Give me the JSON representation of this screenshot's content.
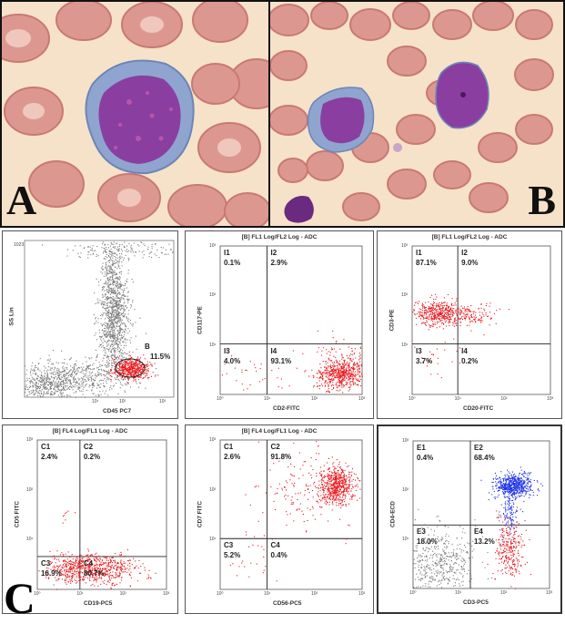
{
  "panel_letters": {
    "a": "A",
    "b": "B",
    "c": "C"
  },
  "scatter": {
    "ylabel": "SS Lin",
    "xlabel": "CD45 PC7",
    "ytick_top": "1023",
    "gate_label": "B",
    "gate_pct": "11.5%"
  },
  "plots": [
    {
      "id": "cd117",
      "title": "[B] FL1 Log/FL2 Log - ADC",
      "xlabel": "CD2-FITC",
      "ylabel": "CD117-PE",
      "quadrants": [
        {
          "label": "I1",
          "pct": "0.1%"
        },
        {
          "label": "I2",
          "pct": "2.9%"
        },
        {
          "label": "I3",
          "pct": "4.0%"
        },
        {
          "label": "I4",
          "pct": "93.1%"
        }
      ]
    },
    {
      "id": "cd3",
      "title": "[B] FL1 Log/FL2 Log - ADC",
      "xlabel": "CD20-FITC",
      "ylabel": "CD3-PE",
      "quadrants": [
        {
          "label": "I1",
          "pct": "87.1%"
        },
        {
          "label": "I2",
          "pct": "9.0%"
        },
        {
          "label": "I3",
          "pct": "3.7%"
        },
        {
          "label": "I4",
          "pct": "0.2%"
        }
      ]
    },
    {
      "id": "cd5",
      "title": "[B] FL4 Log/FL1 Log - ADC",
      "xlabel": "CD19-PC5",
      "ylabel": "CD5 FITC",
      "quadrants": [
        {
          "label": "C1",
          "pct": "2.4%"
        },
        {
          "label": "C2",
          "pct": "0.2%"
        },
        {
          "label": "C3",
          "pct": "16.9%"
        },
        {
          "label": "C4",
          "pct": "80.7%"
        }
      ]
    },
    {
      "id": "cd7",
      "title": "[B] FL4 Log/FL1 Log - ADC",
      "xlabel": "CD56-PC5",
      "ylabel": "CD7 FITC",
      "quadrants": [
        {
          "label": "C1",
          "pct": "2.6%"
        },
        {
          "label": "C2",
          "pct": "91.8%"
        },
        {
          "label": "C3",
          "pct": "5.2%"
        },
        {
          "label": "C4",
          "pct": "0.4%"
        }
      ]
    },
    {
      "id": "cd4",
      "title": "",
      "xlabel": "CD3-PC5",
      "ylabel": "CD4-ECD",
      "quadrants": [
        {
          "label": "E1",
          "pct": "0.4%"
        },
        {
          "label": "E2",
          "pct": "68.4%"
        },
        {
          "label": "E3",
          "pct": "18.0%"
        },
        {
          "label": "E4",
          "pct": "13.2%"
        }
      ]
    }
  ],
  "ticks": {
    "t0": "10⁰",
    "t1": "10¹",
    "t2": "10²",
    "t3": "10³"
  },
  "colors": {
    "red_dots": "#e8171b",
    "blue_dots": "#1a2ee6",
    "gray_dots": "#7a7a7a",
    "stained_cell": "#8a3fa0",
    "rbc": "#d98a86"
  }
}
